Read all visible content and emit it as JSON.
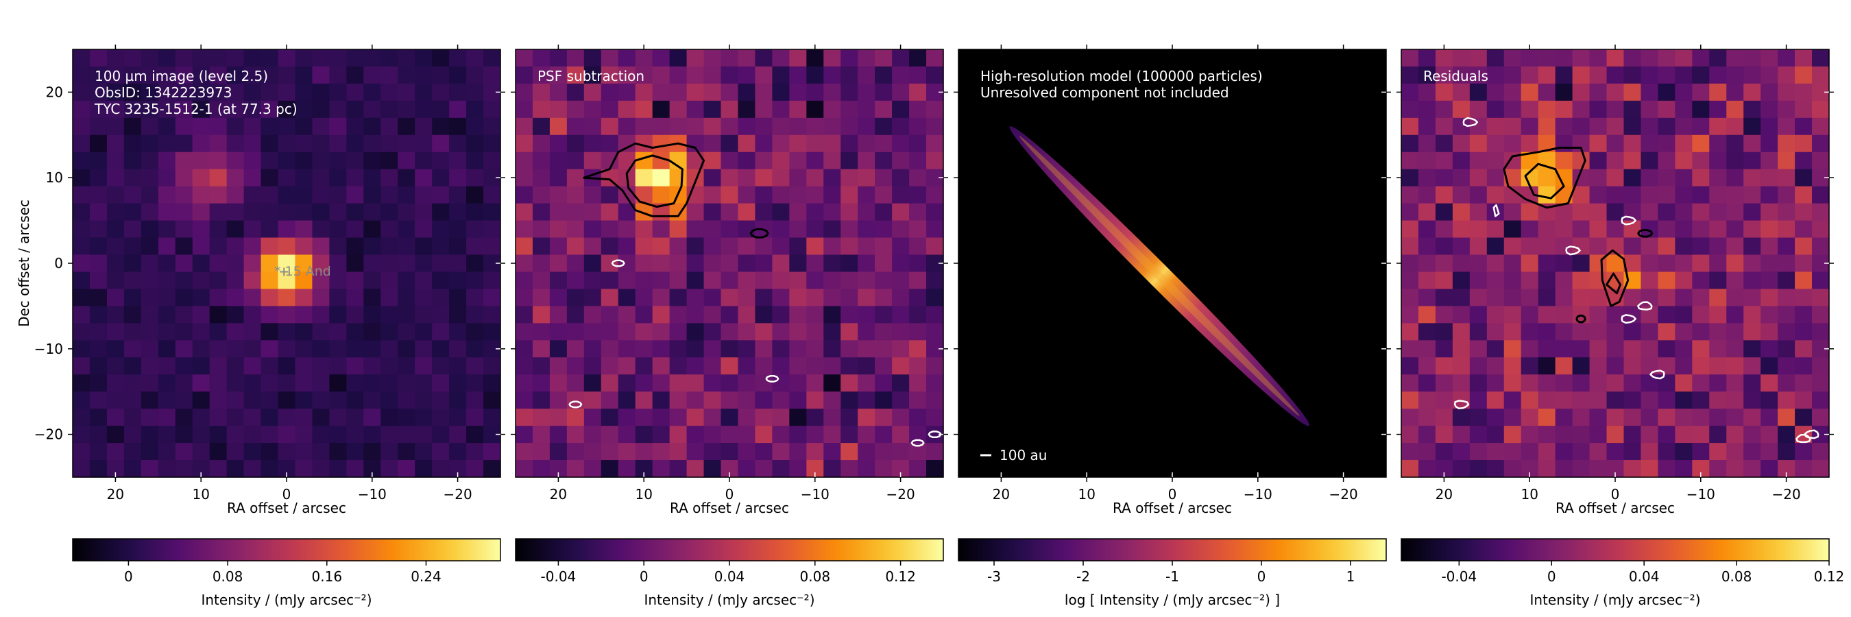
{
  "chart_data": [
    {
      "type": "heatmap",
      "panel_title": "",
      "annotations": [
        "100 µm image (level 2.5)",
        "ObsID: 1342223973",
        "TYC 3235-1512-1 (at 77.3 pc)"
      ],
      "star_label": "* 15 And",
      "xlabel": "RA offset / arcsec",
      "ylabel": "Dec offset / arcsec",
      "x_ticks": [
        20,
        10,
        0,
        -10,
        -20
      ],
      "y_ticks": [
        20,
        10,
        0,
        -10,
        -20
      ],
      "xlim": [
        25,
        -25
      ],
      "ylim": [
        -25,
        25
      ],
      "colorbar": {
        "label": "Intensity / (mJy arcsec⁻²)",
        "ticks": [
          "0",
          "0.08",
          "0.16",
          "0.24"
        ],
        "tick_values": [
          0,
          0.08,
          0.16,
          0.24
        ],
        "range": [
          -0.045,
          0.3
        ]
      },
      "blobs": [
        {
          "ra": 0,
          "dec": -1,
          "peak": 0.3,
          "sigma": 2.6
        },
        {
          "ra": 9,
          "dec": 10,
          "peak": 0.11,
          "sigma": 2.8
        }
      ]
    },
    {
      "type": "heatmap",
      "annotations": [
        "PSF subtraction"
      ],
      "xlabel": "RA offset / arcsec",
      "x_ticks": [
        20,
        10,
        0,
        -10,
        -20
      ],
      "xlim": [
        25,
        -25
      ],
      "ylim": [
        -25,
        25
      ],
      "colorbar": {
        "label": "Intensity / (mJy arcsec⁻²)",
        "ticks": [
          "-0.04",
          "0",
          "0.04",
          "0.08",
          "0.12"
        ],
        "tick_values": [
          -0.04,
          0,
          0.04,
          0.08,
          0.12
        ],
        "range": [
          -0.06,
          0.14
        ]
      },
      "blobs": [
        {
          "ra": 8,
          "dec": 10,
          "peak": 0.13,
          "sigma": 2.8
        }
      ],
      "contours_black": [
        "source",
        "inner"
      ],
      "contours_white": 5
    },
    {
      "type": "heatmap",
      "annotations": [
        "High-resolution model (100000 particles)",
        "Unresolved component not included"
      ],
      "scalebar_label": "100 au",
      "xlabel": "RA offset / arcsec",
      "x_ticks": [
        20,
        10,
        0,
        -10,
        -20
      ],
      "xlim": [
        25,
        -25
      ],
      "ylim": [
        -25,
        25
      ],
      "disc": {
        "ra_start": 19,
        "dec_start": 16,
        "ra_end": -16,
        "dec_end": -19
      },
      "colorbar": {
        "label": "log [ Intensity / (mJy arcsec⁻²) ]",
        "ticks": [
          "-3",
          "-2",
          "-1",
          "0",
          "1"
        ],
        "tick_values": [
          -3,
          -2,
          -1,
          0,
          1
        ],
        "range": [
          -3.4,
          1.4
        ]
      }
    },
    {
      "type": "heatmap",
      "annotations": [
        "Residuals"
      ],
      "xlabel": "RA offset / arcsec",
      "x_ticks": [
        20,
        10,
        0,
        -10,
        -20
      ],
      "xlim": [
        25,
        -25
      ],
      "ylim": [
        -25,
        25
      ],
      "colorbar": {
        "label": "Intensity / (mJy arcsec⁻²)",
        "ticks": [
          "-0.04",
          "0",
          "0.04",
          "0.08",
          "0.12"
        ],
        "tick_values": [
          -0.04,
          0,
          0.04,
          0.08,
          0.12
        ],
        "range": [
          -0.065,
          0.12
        ]
      },
      "blobs": [
        {
          "ra": 8,
          "dec": 10,
          "peak": 0.12,
          "sigma": 2.6
        },
        {
          "ra": 0,
          "dec": -1.5,
          "peak": 0.085,
          "sigma": 1.9
        }
      ],
      "contours_black": [
        "source",
        "center"
      ],
      "contours_white": 8
    }
  ]
}
